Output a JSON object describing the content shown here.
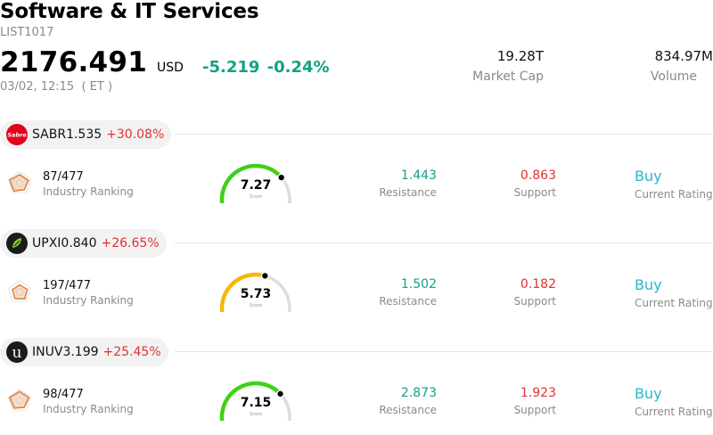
{
  "header": {
    "title": "Software & IT Services",
    "code": "LIST1017",
    "price": "2176.491",
    "currency": "USD",
    "change": "-5.219 -0.24%",
    "timestamp": "03/02, 12:15  ( ET )",
    "market_cap_value": "19.28T",
    "market_cap_label": "Market Cap",
    "volume_value": "834.97M",
    "volume_label": "Volume"
  },
  "stocks": [
    {
      "ticker": "SABR",
      "price": "1.535",
      "change": "+30.08%",
      "logo_text": "Sabre",
      "logo_color": "#e3001b",
      "ranking": "87/477",
      "ranking_label": "Industry Ranking",
      "score": "7.27",
      "score_value": 7.27,
      "score_label": "Score",
      "gauge_color": "#3fd11a",
      "resistance": "1.443",
      "resistance_label": "Resistance",
      "support": "0.863",
      "support_label": "Support",
      "rating": "Buy",
      "rating_label": "Current Rating"
    },
    {
      "ticker": "UPXI",
      "price": "0.840",
      "change": "+26.65%",
      "logo_text": "",
      "logo_color": "#1b1b1b",
      "ranking": "197/477",
      "ranking_label": "Industry Ranking",
      "score": "5.73",
      "score_value": 5.73,
      "score_label": "Score",
      "gauge_color": "#f5b80a",
      "resistance": "1.502",
      "resistance_label": "Resistance",
      "support": "0.182",
      "support_label": "Support",
      "rating": "Buy",
      "rating_label": "Current Rating"
    },
    {
      "ticker": "INUV",
      "price": "3.199",
      "change": "+25.45%",
      "logo_text": "u",
      "logo_color": "#1b1b1b",
      "ranking": "98/477",
      "ranking_label": "Industry Ranking",
      "score": "7.15",
      "score_value": 7.15,
      "score_label": "Score",
      "gauge_color": "#3fd11a",
      "resistance": "2.873",
      "resistance_label": "Resistance",
      "support": "1.923",
      "support_label": "Support",
      "rating": "Buy",
      "rating_label": "Current Rating"
    }
  ],
  "colors": {
    "positive": "#14a085",
    "negative": "#e53030",
    "rating": "#2ab7c9",
    "radar_stroke": "#e07a2e"
  }
}
